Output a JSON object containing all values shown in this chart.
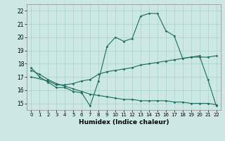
{
  "xlabel": "Humidex (Indice chaleur)",
  "bg_color": "#cde8e4",
  "grid_color": "#aed4cf",
  "line_color": "#1a6b5e",
  "x_ticks": [
    0,
    1,
    2,
    3,
    4,
    5,
    6,
    7,
    8,
    9,
    10,
    11,
    12,
    13,
    14,
    15,
    16,
    17,
    18,
    19,
    20,
    21,
    22
  ],
  "ylim": [
    14.5,
    22.5
  ],
  "xlim": [
    -0.5,
    22.5
  ],
  "yticks": [
    15,
    16,
    17,
    18,
    19,
    20,
    21,
    22
  ],
  "line1_x": [
    0,
    1,
    2,
    3,
    4,
    5,
    6,
    7,
    8,
    9,
    10,
    11,
    12,
    13,
    14,
    15,
    16,
    17,
    18,
    19,
    20,
    21,
    22
  ],
  "line1_y": [
    17.7,
    17.0,
    16.6,
    16.2,
    16.2,
    15.9,
    15.8,
    14.8,
    16.7,
    19.3,
    20.0,
    19.7,
    19.9,
    21.6,
    21.8,
    21.8,
    20.5,
    20.1,
    18.4,
    18.5,
    18.6,
    16.8,
    14.8
  ],
  "line2_x": [
    0,
    2,
    3,
    4,
    5,
    6,
    7,
    8,
    9,
    10,
    11,
    12,
    13,
    14,
    15,
    16,
    17,
    18,
    19,
    20,
    21,
    22
  ],
  "line2_y": [
    17.0,
    16.7,
    16.4,
    16.4,
    16.5,
    16.7,
    16.8,
    17.2,
    17.4,
    17.5,
    17.6,
    17.7,
    17.9,
    18.0,
    18.1,
    18.2,
    18.3,
    18.4,
    18.5,
    18.5,
    18.5,
    18.6
  ],
  "line3_x": [
    0,
    1,
    2,
    3,
    4,
    5,
    6,
    7,
    8,
    9,
    10,
    11,
    12,
    13,
    14,
    15,
    16,
    17,
    18,
    19,
    20,
    21,
    22
  ],
  "line3_y": [
    17.5,
    17.2,
    16.8,
    16.5,
    16.3,
    16.1,
    15.9,
    15.7,
    15.6,
    15.5,
    15.4,
    15.3,
    15.3,
    15.2,
    15.2,
    15.2,
    15.2,
    15.1,
    15.1,
    15.0,
    15.0,
    15.0,
    14.9
  ]
}
